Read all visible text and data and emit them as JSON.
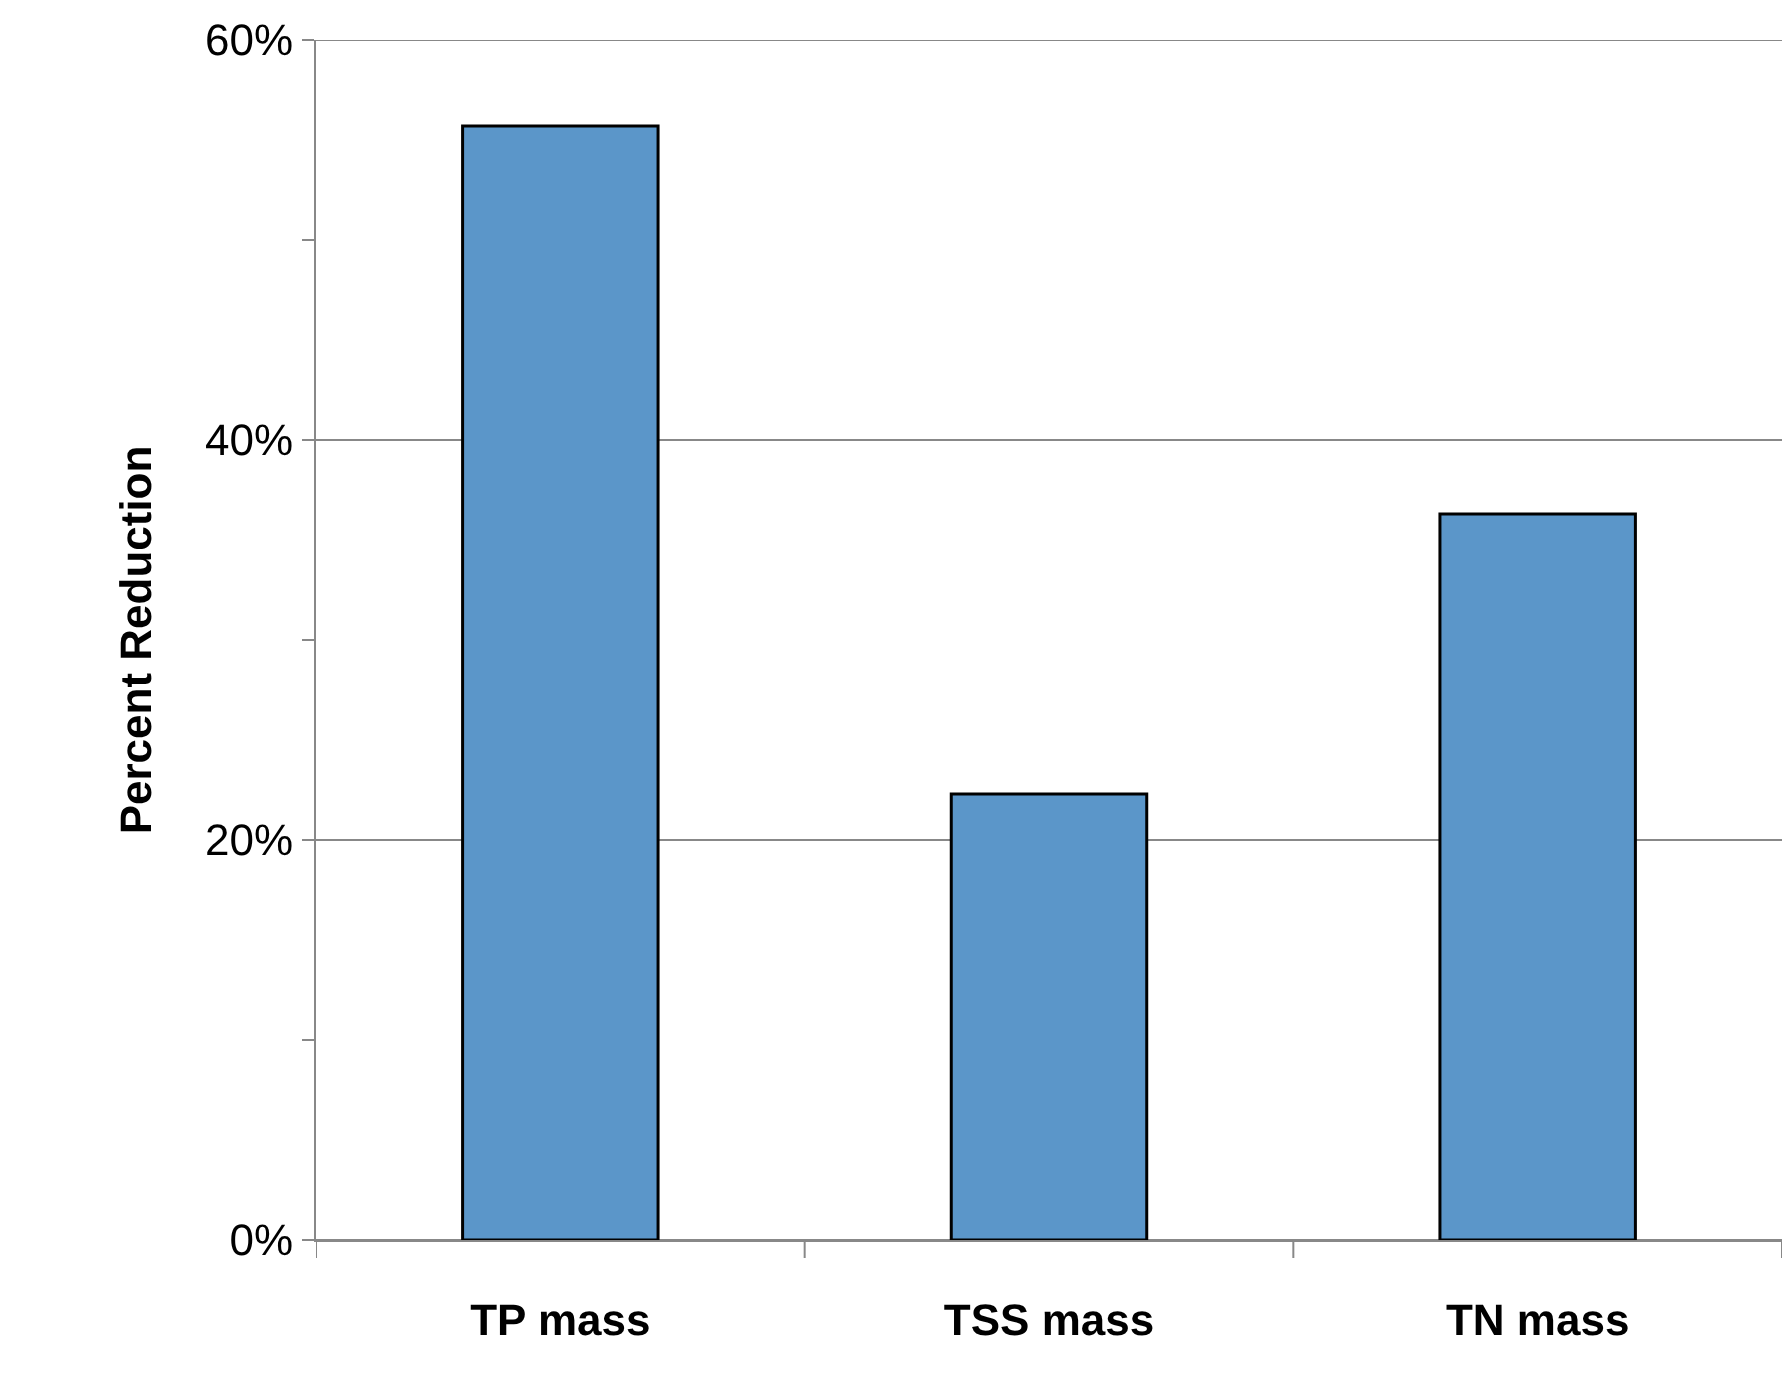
{
  "chart_data": {
    "type": "bar",
    "ylabel": "Percent Reduction",
    "categories": [
      "TP mass",
      "TSS mass",
      "TN mass"
    ],
    "values": [
      55.7,
      22.3,
      36.3
    ],
    "color": "#5b96c9",
    "ylim": [
      0,
      60
    ],
    "yticks": [
      {
        "value": 0,
        "label": "0%"
      },
      {
        "value": 10,
        "label": null
      },
      {
        "value": 20,
        "label": "20%"
      },
      {
        "value": 30,
        "label": null
      },
      {
        "value": 40,
        "label": "40%"
      },
      {
        "value": 50,
        "label": null
      },
      {
        "value": 60,
        "label": "60%"
      }
    ],
    "grid": "y"
  }
}
